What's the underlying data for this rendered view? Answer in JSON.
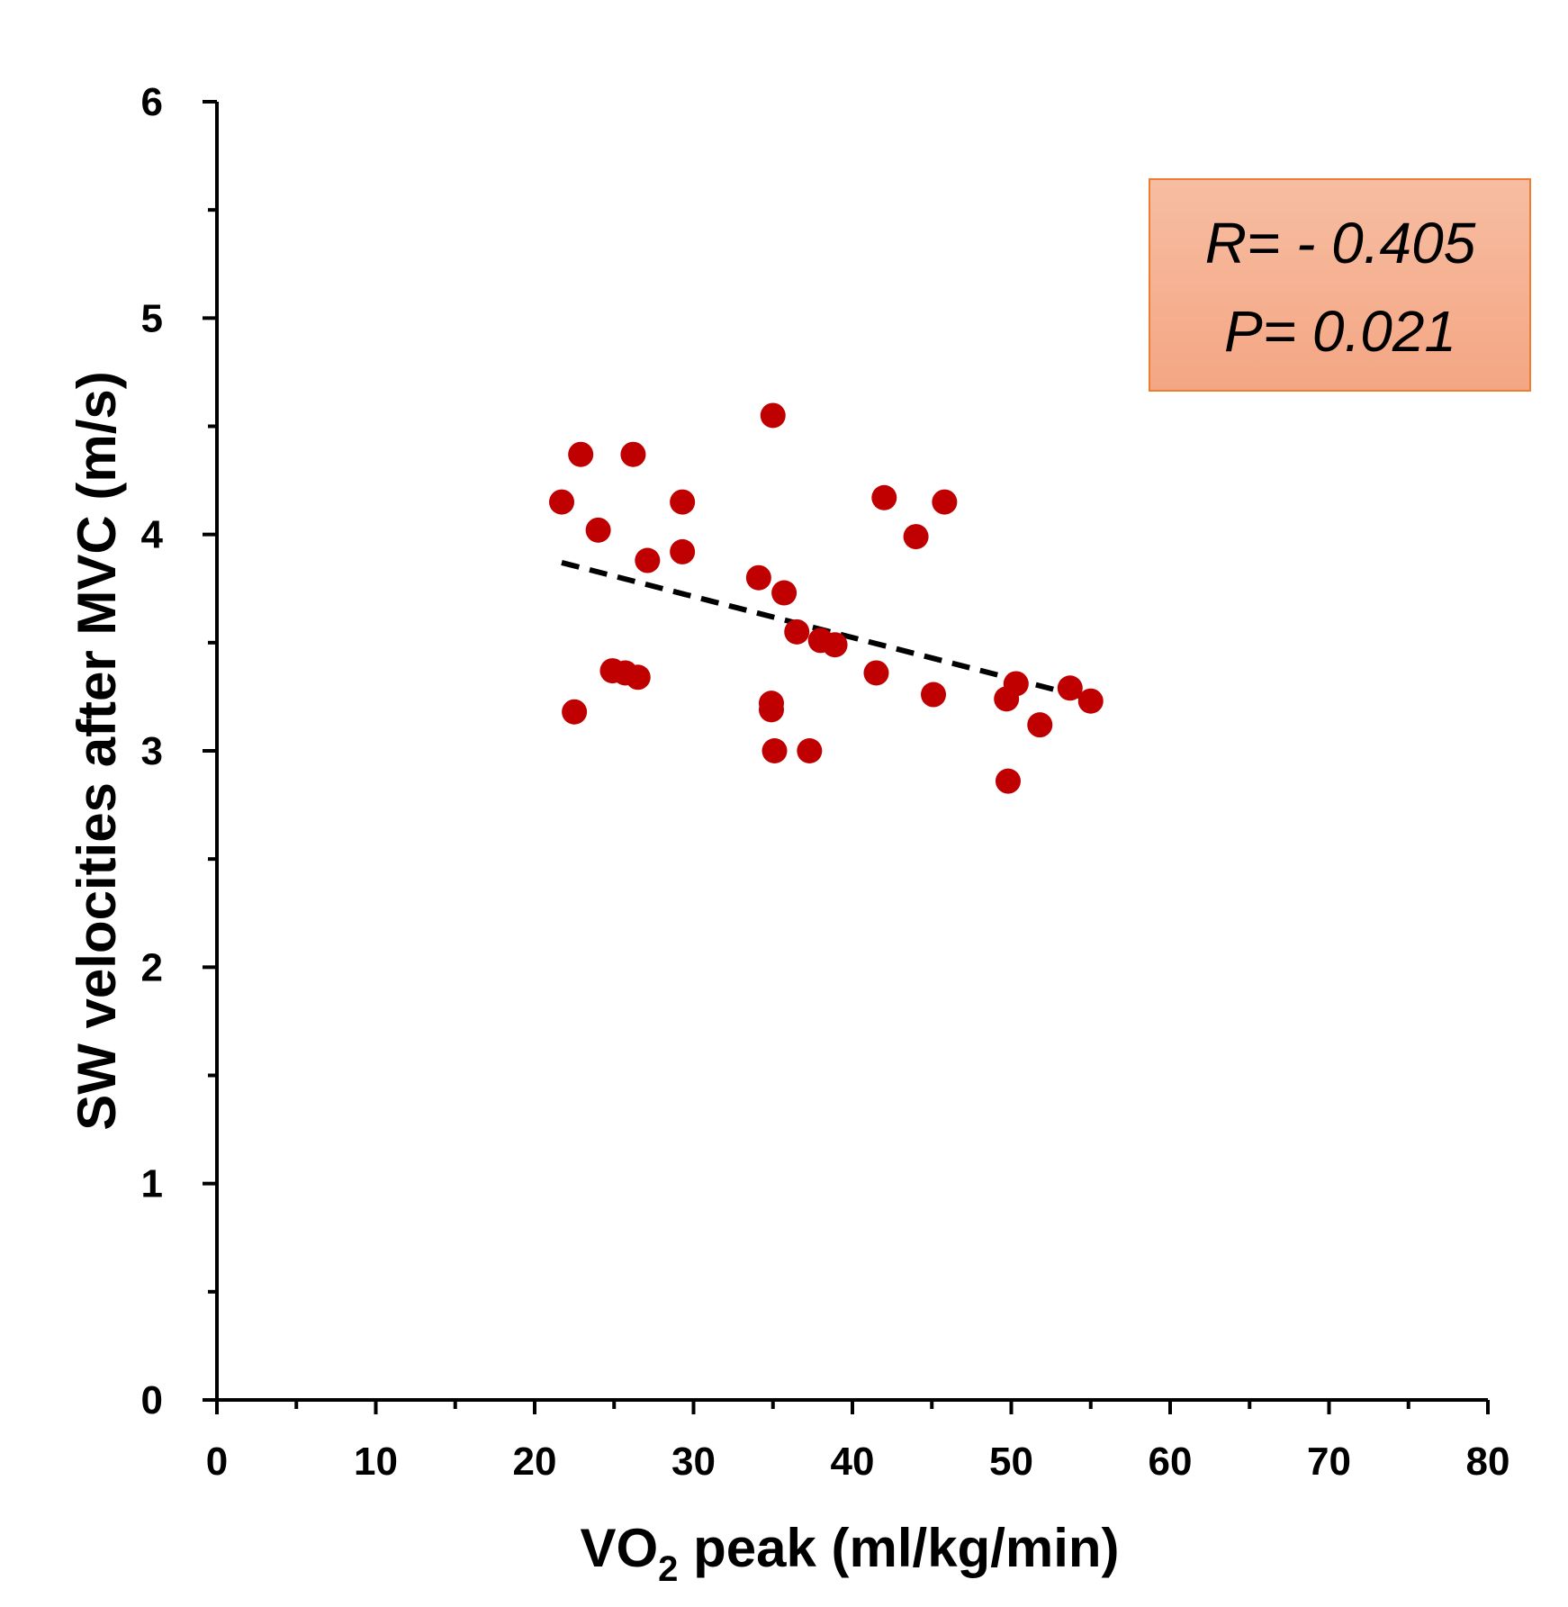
{
  "chart_data": {
    "type": "scatter",
    "xlabel_main": "VO",
    "xlabel_sub": "2",
    "xlabel_rest": " peak (ml/kg/min)",
    "ylabel": "SW velocities after MVC (m/s)",
    "xlim": [
      0,
      80
    ],
    "ylim": [
      0,
      6
    ],
    "x_ticks": [
      0,
      10,
      20,
      30,
      40,
      50,
      60,
      70,
      80
    ],
    "x_minor_ticks": [
      5,
      15,
      25,
      35,
      45,
      55,
      65,
      75
    ],
    "y_ticks": [
      0,
      1,
      2,
      3,
      4,
      5,
      6
    ],
    "y_minor_ticks": [
      0.5,
      1.5,
      2.5,
      3.5,
      4.5,
      5.5
    ],
    "grid": false,
    "points": [
      {
        "x": 21.7,
        "y": 4.15
      },
      {
        "x": 22.5,
        "y": 3.18
      },
      {
        "x": 22.9,
        "y": 4.37
      },
      {
        "x": 24.0,
        "y": 4.02
      },
      {
        "x": 24.9,
        "y": 3.37
      },
      {
        "x": 25.7,
        "y": 3.36
      },
      {
        "x": 26.2,
        "y": 4.37
      },
      {
        "x": 26.5,
        "y": 3.34
      },
      {
        "x": 27.1,
        "y": 3.88
      },
      {
        "x": 29.3,
        "y": 3.92
      },
      {
        "x": 29.3,
        "y": 4.15
      },
      {
        "x": 34.1,
        "y": 3.8
      },
      {
        "x": 35.0,
        "y": 4.55
      },
      {
        "x": 34.9,
        "y": 3.22
      },
      {
        "x": 34.9,
        "y": 3.19
      },
      {
        "x": 35.1,
        "y": 3.0
      },
      {
        "x": 35.7,
        "y": 3.73
      },
      {
        "x": 36.5,
        "y": 3.55
      },
      {
        "x": 37.3,
        "y": 3.0
      },
      {
        "x": 38.0,
        "y": 3.51
      },
      {
        "x": 38.9,
        "y": 3.49
      },
      {
        "x": 41.5,
        "y": 3.36
      },
      {
        "x": 42.0,
        "y": 4.17
      },
      {
        "x": 44.0,
        "y": 3.99
      },
      {
        "x": 45.1,
        "y": 3.26
      },
      {
        "x": 45.8,
        "y": 4.15
      },
      {
        "x": 49.7,
        "y": 3.24
      },
      {
        "x": 49.8,
        "y": 2.86
      },
      {
        "x": 50.3,
        "y": 3.31
      },
      {
        "x": 51.8,
        "y": 3.12
      },
      {
        "x": 53.7,
        "y": 3.29
      },
      {
        "x": 55.0,
        "y": 3.23
      }
    ],
    "trendline": {
      "x": [
        21.7,
        55.0
      ],
      "y": [
        3.87,
        3.24
      ],
      "style": "dashed",
      "color": "#000000"
    },
    "marker_color": "#c00000",
    "annotation": {
      "r_text": "R= - 0.405",
      "p_text": "P= 0.021",
      "placement": "top-right",
      "fill_top": "#f7bda2",
      "fill_bottom": "#f4a683",
      "border": "#ed7d31"
    }
  }
}
